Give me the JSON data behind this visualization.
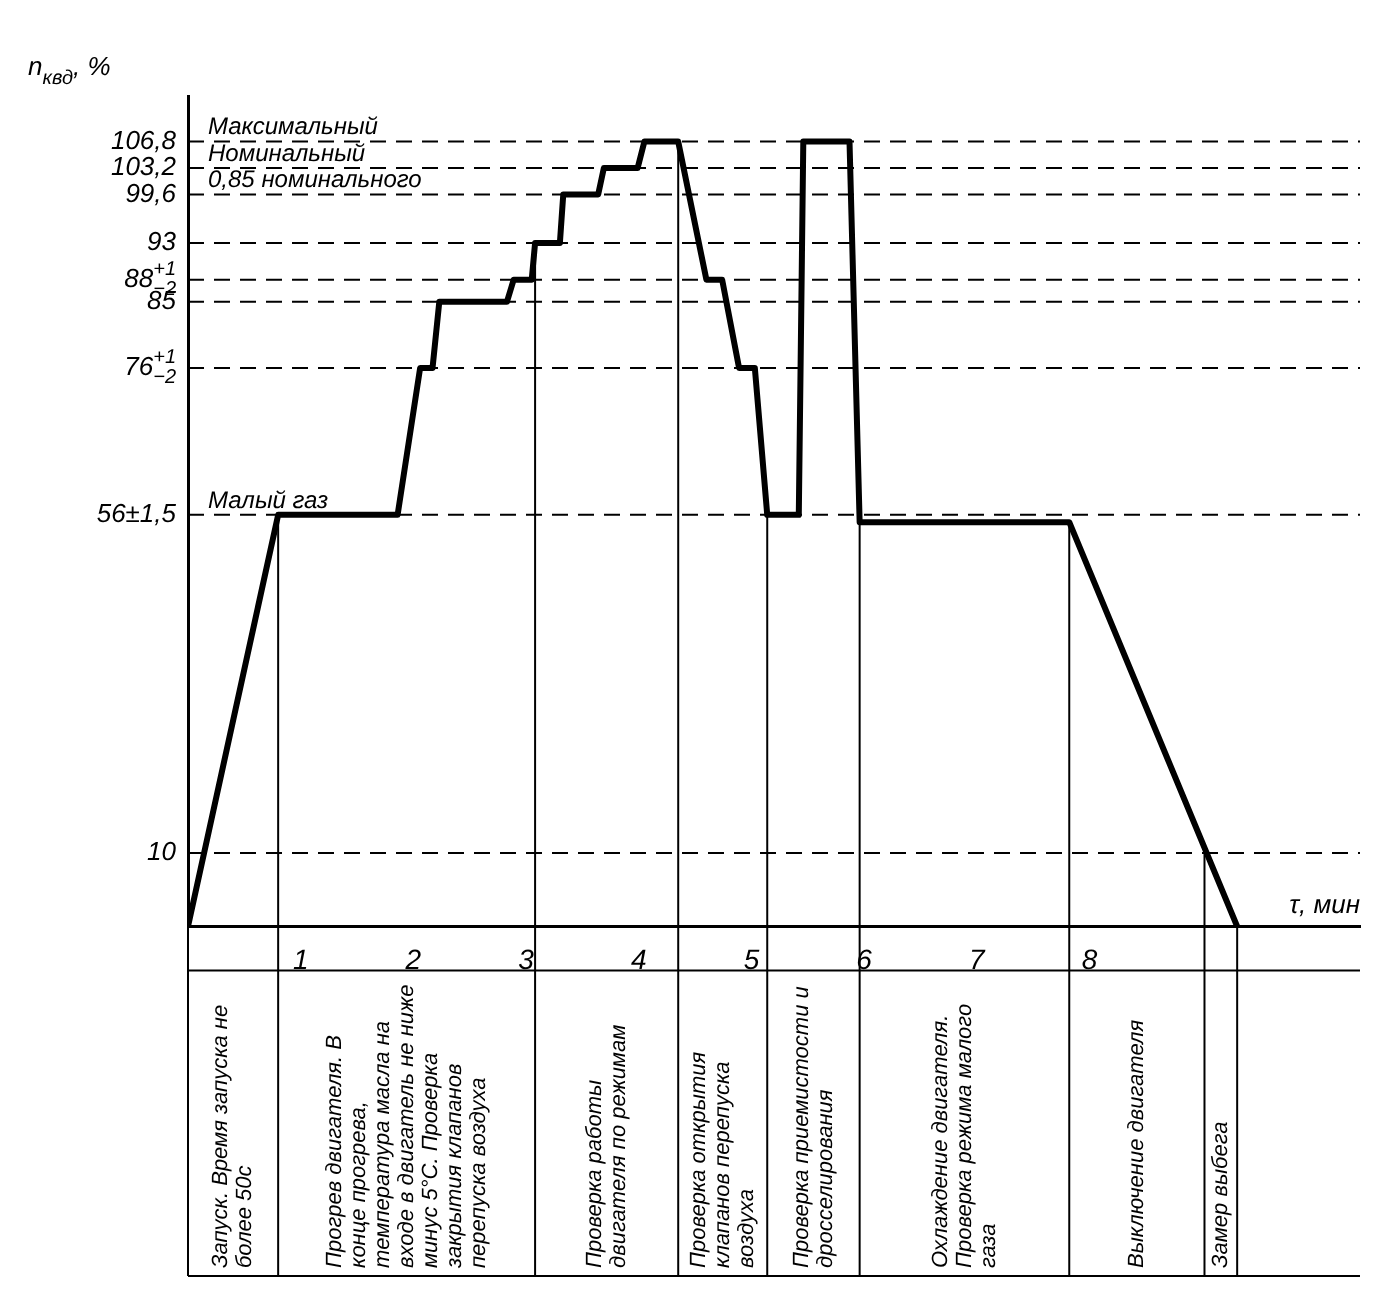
{
  "chart_data": {
    "type": "line",
    "ylabel": "n$_{квд}$, %",
    "xlabel": "τ, мин",
    "x": [
      0,
      0.8,
      1.86,
      2.06,
      2.17,
      2.23,
      2.83,
      2.89,
      3.05,
      3.08,
      3.3,
      3.33,
      3.64,
      3.69,
      3.99,
      4.05,
      4.35,
      4.6,
      4.74,
      4.89,
      5.03,
      5.14,
      5.42,
      5.46,
      5.87,
      5.96,
      7.82,
      9.31
    ],
    "series": [
      {
        "color": "#000000",
        "values": [
          0,
          56,
          56,
          76,
          76,
          85,
          85,
          88,
          88,
          93,
          93,
          99.6,
          99.6,
          103.2,
          103.2,
          106.8,
          106.8,
          88,
          88,
          76,
          76,
          56,
          56,
          106.8,
          106.8,
          55,
          55,
          0
        ]
      }
    ],
    "xlim": [
      0,
      10.4
    ],
    "xticks": [
      1,
      2,
      3,
      4,
      5,
      6,
      7,
      8
    ],
    "ylim": [
      0,
      113
    ],
    "yticks": [
      {
        "value": 10,
        "label": "10"
      },
      {
        "value": 56,
        "label": "56±1,5"
      },
      {
        "value": 76,
        "label": "76$^{+1}$$_{−2}$"
      },
      {
        "value": 85,
        "label": "85"
      },
      {
        "value": 88,
        "label": "88$^{+1}$$_{−2}$"
      },
      {
        "value": 93,
        "label": "93"
      },
      {
        "value": 99.6,
        "label": "99,6"
      },
      {
        "value": 103.2,
        "label": "103,2"
      },
      {
        "value": 106.8,
        "label": "106,8"
      }
    ],
    "ref_lines": [
      {
        "axis": "x",
        "value": 0.8,
        "color": "#000000"
      },
      {
        "axis": "x",
        "value": 3.08,
        "color": "#000000"
      },
      {
        "axis": "x",
        "value": 4.35,
        "color": "#000000"
      },
      {
        "axis": "x",
        "value": 5.14,
        "color": "#000000"
      },
      {
        "axis": "x",
        "value": 5.96,
        "color": "#000000"
      },
      {
        "axis": "x",
        "value": 7.82,
        "color": "#000000"
      },
      {
        "axis": "x",
        "value": 9.02,
        "color": "#000000"
      },
      {
        "axis": "y",
        "value": 106.8,
        "label": "Максимальный",
        "color": "#000000",
        "line_style": "dashed"
      },
      {
        "axis": "y",
        "value": 103.2,
        "label": "Номинальный",
        "color": "#000000",
        "line_style": "dashed"
      },
      {
        "axis": "y",
        "value": 99.6,
        "label": "0,85 номинального",
        "color": "#000000",
        "line_style": "dashed"
      },
      {
        "axis": "y",
        "value": 93,
        "color": "#000000",
        "line_style": "dashed"
      },
      {
        "axis": "y",
        "value": 88,
        "color": "#000000",
        "line_style": "dashed"
      },
      {
        "axis": "y",
        "value": 85,
        "color": "#000000",
        "line_style": "dashed"
      },
      {
        "axis": "y",
        "value": 76,
        "color": "#000000",
        "line_style": "dashed"
      },
      {
        "axis": "y",
        "value": 56,
        "label": "Малый газ",
        "color": "#000000",
        "line_style": "dashed"
      },
      {
        "axis": "y",
        "value": 10,
        "color": "#000000",
        "line_style": "dashed"
      }
    ],
    "annotations": [
      "Запуск. Время запуска не более 50с",
      "Прогрев двигателя. В конце прогрева, температура масла на входе в двигатель не ниже минус 5°С. Проверка закрытия клапанов перепуска воздуха",
      "Проверка работы двигателя по режимам",
      "Проверка открытия клапанов перепуска воздуха",
      "Проверка приемистости и дросселирования",
      "Охлаждение двигателя. Проверка режима малого газа",
      "Выключение двигателя",
      "Замер выбега"
    ]
  }
}
